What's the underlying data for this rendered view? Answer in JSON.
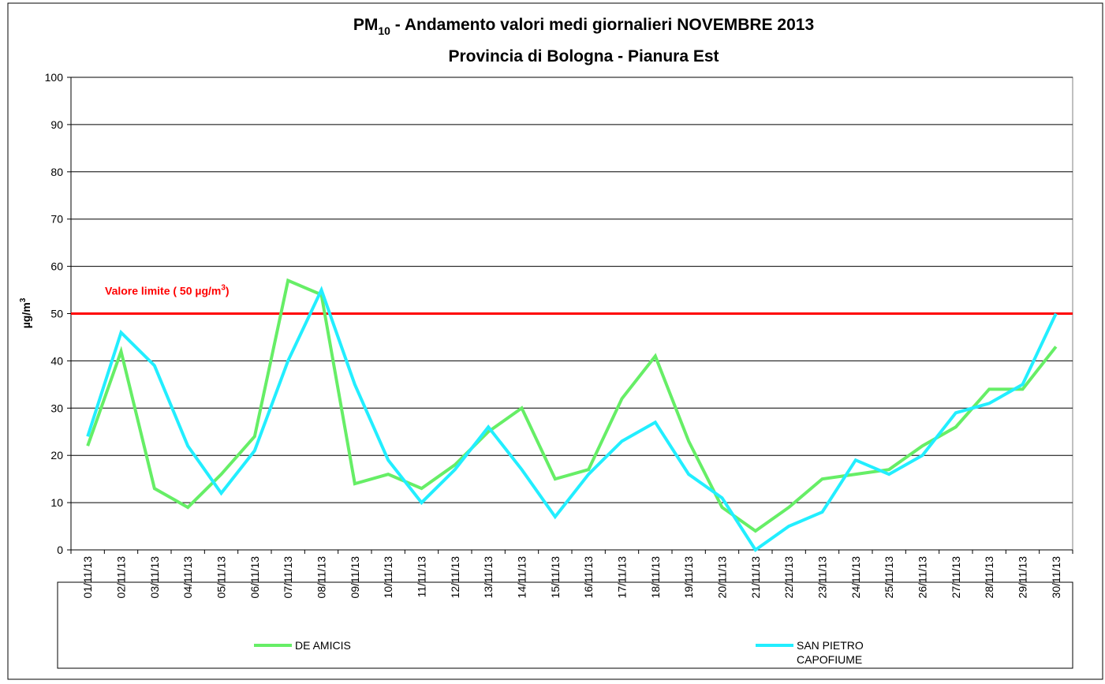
{
  "chart_data": {
    "type": "line",
    "title": {
      "main": "PM",
      "sub": "10",
      "rest": " - Andamento valori medi giornalieri NOVEMBRE 2013"
    },
    "subtitle": "Provincia di Bologna - Pianura Est",
    "ylabel": {
      "main": "µg/m",
      "sup": "3"
    },
    "categories": [
      "01/11/13",
      "02/11/13",
      "03/11/13",
      "04/11/13",
      "05/11/13",
      "06/11/13",
      "07/11/13",
      "08/11/13",
      "09/11/13",
      "10/11/13",
      "11/11/13",
      "12/11/13",
      "13/11/13",
      "14/11/13",
      "15/11/13",
      "16/11/13",
      "17/11/13",
      "18/11/13",
      "19/11/13",
      "20/11/13",
      "21/11/13",
      "22/11/13",
      "23/11/13",
      "24/11/13",
      "25/11/13",
      "26/11/13",
      "27/11/13",
      "28/11/13",
      "29/11/13",
      "30/11/13"
    ],
    "series": [
      {
        "name": "DE AMICIS",
        "color": "#66ee66",
        "values": [
          22,
          42,
          13,
          9,
          16,
          24,
          57,
          54,
          14,
          16,
          13,
          18,
          25,
          30,
          15,
          17,
          32,
          41,
          23,
          9,
          4,
          9,
          15,
          16,
          17,
          22,
          26,
          34,
          34,
          43
        ]
      },
      {
        "name": "SAN PIETRO CAPOFIUME",
        "color": "#22eeff",
        "values": [
          24,
          46,
          39,
          22,
          12,
          21,
          40,
          55,
          35,
          19,
          10,
          17,
          26,
          17,
          7,
          16,
          23,
          27,
          16,
          11,
          0,
          5,
          8,
          19,
          16,
          20,
          29,
          31,
          35,
          50
        ]
      }
    ],
    "ylim": [
      0,
      100
    ],
    "yticks": [
      0,
      10,
      20,
      30,
      40,
      50,
      60,
      70,
      80,
      90,
      100
    ],
    "grid": true,
    "hline": {
      "value": 50,
      "color": "#ff0000",
      "label": {
        "main": "Valore limite  ( 50 µg/m",
        "sup": "3",
        "rest": ")"
      }
    }
  }
}
